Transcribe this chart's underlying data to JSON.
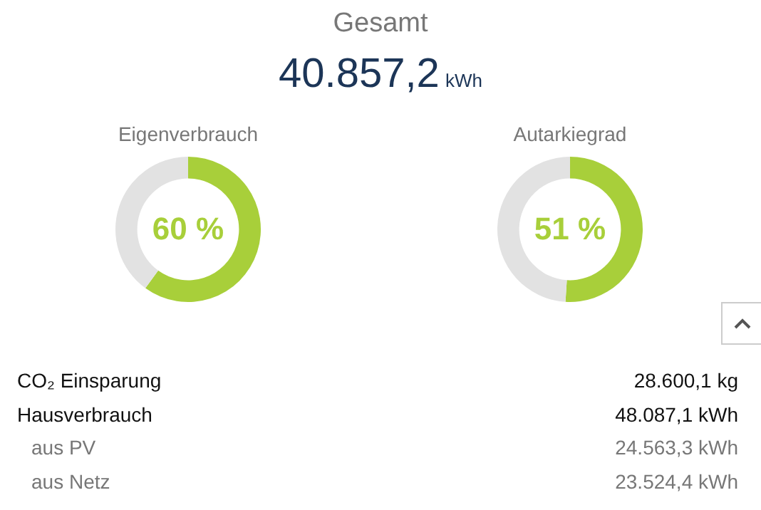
{
  "chart_data": [
    {
      "type": "other",
      "title": "Gesamt",
      "annotations": [
        "40.857,2",
        "kWh"
      ]
    },
    {
      "type": "donut",
      "title": "Eigenverbrauch",
      "categories": [
        null,
        null
      ],
      "values": [
        60,
        40
      ],
      "colors": [
        "#a8cf3a",
        "#e2e2e2"
      ],
      "value_labels": [
        "60 %",
        null
      ]
    },
    {
      "type": "donut",
      "title": "Autarkiegrad",
      "categories": [
        null,
        null
      ],
      "values": [
        51,
        49
      ],
      "colors": [
        "#a8cf3a",
        "#e2e2e2"
      ],
      "value_labels": [
        "51 %",
        null
      ]
    },
    {
      "type": "other",
      "annotations": [
        "CO₂ Einsparung",
        "28.600,1 kg",
        "Hausverbrauch",
        "48.087,1 kWh",
        "aus PV",
        "24.563,3 kWh",
        "aus Netz",
        "23.524,4 kWh"
      ]
    }
  ]
}
